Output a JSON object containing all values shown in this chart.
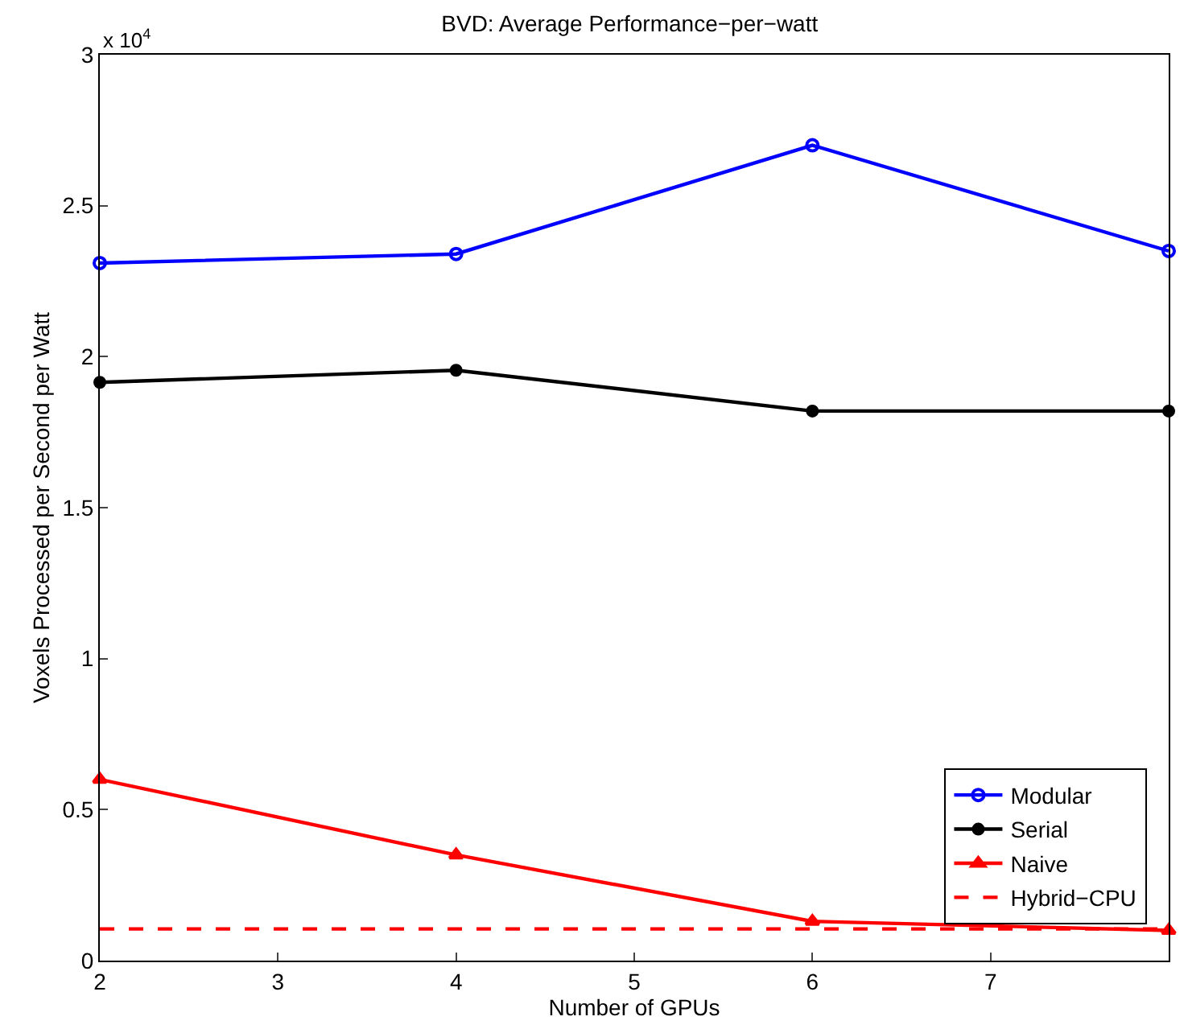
{
  "chart_data": {
    "type": "line",
    "title": "BVD: Average Performance−per−watt",
    "xlabel": "Number of GPUs",
    "ylabel": "Voxels Processed per Second per Watt",
    "annotations": [
      "x 10$^{4}$"
    ],
    "x": [
      2,
      4,
      6,
      8
    ],
    "series": [
      {
        "name": "Modular",
        "color": "#0000ff",
        "values": [
          2.31,
          2.34,
          2.7,
          2.35
        ],
        "marker": "circle",
        "line_style": "solid"
      },
      {
        "name": "Serial",
        "color": "#000000",
        "values": [
          1.915,
          1.955,
          1.82,
          1.82
        ],
        "marker": "circle",
        "line_style": "solid"
      },
      {
        "name": "Naive",
        "color": "#ff0000",
        "values": [
          0.6,
          0.35,
          0.13,
          0.1
        ],
        "marker": "triangle",
        "line_style": "solid"
      },
      {
        "name": "Hybrid−CPU",
        "color": "#ff0000",
        "values": [
          0.105,
          0.105,
          0.105,
          0.105
        ],
        "marker": "none",
        "line_style": "dashed"
      }
    ],
    "xlim": [
      2,
      8
    ],
    "xticks": [
      2,
      3,
      4,
      5,
      6,
      7
    ],
    "ylim": [
      0,
      3
    ],
    "yticks": [
      0,
      0.5,
      1,
      1.5,
      2,
      2.5,
      3
    ],
    "legend": "bottom right"
  }
}
